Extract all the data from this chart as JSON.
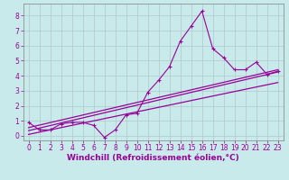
{
  "xlabel": "Windchill (Refroidissement éolien,°C)",
  "ylabel": "",
  "bg_color": "#c8eaea",
  "line_color": "#990099",
  "border_color": "#808080",
  "marker": "+",
  "xlim": [
    -0.5,
    23.5
  ],
  "ylim": [
    -0.3,
    8.8
  ],
  "xticks": [
    0,
    1,
    2,
    3,
    4,
    5,
    6,
    7,
    8,
    9,
    10,
    11,
    12,
    13,
    14,
    15,
    16,
    17,
    18,
    19,
    20,
    21,
    22,
    23
  ],
  "yticks": [
    0,
    1,
    2,
    3,
    4,
    5,
    6,
    7,
    8
  ],
  "grid_color": "#b0c8c8",
  "main_series_x": [
    0,
    1,
    2,
    3,
    4,
    5,
    6,
    7,
    8,
    9,
    10,
    11,
    12,
    13,
    14,
    15,
    16,
    17,
    18,
    19,
    20,
    21,
    22,
    23
  ],
  "main_series_y": [
    0.9,
    0.4,
    0.4,
    0.8,
    0.9,
    0.9,
    0.7,
    -0.1,
    0.4,
    1.4,
    1.5,
    2.9,
    3.7,
    4.6,
    6.3,
    7.3,
    8.3,
    5.8,
    5.2,
    4.4,
    4.4,
    4.9,
    4.1,
    4.3
  ],
  "line1_x": [
    0,
    23
  ],
  "line1_y": [
    0.55,
    4.4
  ],
  "line2_x": [
    0,
    23
  ],
  "line2_y": [
    0.35,
    4.25
  ],
  "line3_x": [
    0,
    23
  ],
  "line3_y": [
    0.1,
    3.55
  ],
  "font_size_xlabel": 6.5,
  "font_size_ticks": 5.5,
  "title_font_size": 7
}
